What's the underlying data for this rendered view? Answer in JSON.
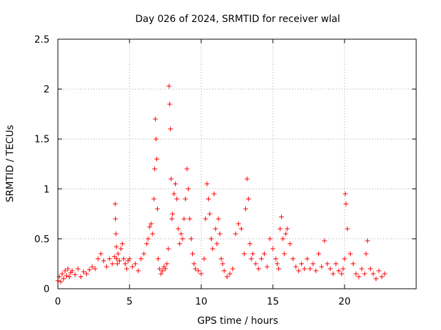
{
  "chart_data": {
    "type": "scatter",
    "title": "Day 026 of 2024, SRMTID for receiver wlal",
    "xlabel": "GPS time / hours",
    "ylabel": "SRMTID / TECUs",
    "xlim": [
      0,
      25
    ],
    "ylim": [
      0,
      2.5
    ],
    "xticks": [
      0,
      5,
      10,
      15,
      20
    ],
    "xtick_labels": [
      "0",
      "5",
      "10",
      "15",
      "20"
    ],
    "yticks": [
      0,
      0.5,
      1,
      1.5,
      2,
      2.5
    ],
    "ytick_labels": [
      "0",
      "0.5",
      "1",
      "1.5",
      "2",
      "2.5"
    ],
    "grid": true,
    "marker": "+",
    "color": "#ff0000",
    "series": [
      {
        "name": "SRMTID",
        "x": [
          0.0,
          0.1,
          0.2,
          0.3,
          0.4,
          0.5,
          0.6,
          0.7,
          0.8,
          0.9,
          1.0,
          1.2,
          1.4,
          1.6,
          1.8,
          2.0,
          2.2,
          2.4,
          2.6,
          2.8,
          3.0,
          3.2,
          3.4,
          3.6,
          3.8,
          3.95,
          4.0,
          4.02,
          4.05,
          4.08,
          4.1,
          4.15,
          4.2,
          4.3,
          4.4,
          4.5,
          4.6,
          4.7,
          4.8,
          4.9,
          5.0,
          5.2,
          5.4,
          5.6,
          5.8,
          6.0,
          6.2,
          6.3,
          6.4,
          6.5,
          6.6,
          6.7,
          6.75,
          6.8,
          6.85,
          6.9,
          6.95,
          7.0,
          7.1,
          7.2,
          7.3,
          7.4,
          7.5,
          7.6,
          7.7,
          7.75,
          7.8,
          7.85,
          7.9,
          7.95,
          8.0,
          8.1,
          8.2,
          8.3,
          8.4,
          8.5,
          8.6,
          8.7,
          8.8,
          8.9,
          9.0,
          9.1,
          9.2,
          9.3,
          9.4,
          9.5,
          9.6,
          9.8,
          10.0,
          10.2,
          10.3,
          10.4,
          10.5,
          10.6,
          10.7,
          10.8,
          10.9,
          11.0,
          11.1,
          11.2,
          11.3,
          11.4,
          11.5,
          11.6,
          11.8,
          12.0,
          12.2,
          12.4,
          12.6,
          12.8,
          13.0,
          13.1,
          13.2,
          13.3,
          13.4,
          13.5,
          13.6,
          13.8,
          14.0,
          14.2,
          14.4,
          14.6,
          14.8,
          15.0,
          15.2,
          15.3,
          15.4,
          15.5,
          15.6,
          15.7,
          15.8,
          15.9,
          16.0,
          16.2,
          16.4,
          16.6,
          16.8,
          17.0,
          17.2,
          17.4,
          17.6,
          17.8,
          18.0,
          18.2,
          18.4,
          18.6,
          18.8,
          19.0,
          19.2,
          19.4,
          19.6,
          19.8,
          19.9,
          20.0,
          20.05,
          20.1,
          20.2,
          20.4,
          20.6,
          20.8,
          21.0,
          21.2,
          21.4,
          21.5,
          21.6,
          21.8,
          22.0,
          22.2,
          22.4,
          22.6,
          22.8
        ],
        "y": [
          0.08,
          0.12,
          0.07,
          0.15,
          0.1,
          0.18,
          0.13,
          0.2,
          0.12,
          0.16,
          0.18,
          0.14,
          0.2,
          0.12,
          0.17,
          0.15,
          0.19,
          0.22,
          0.2,
          0.3,
          0.35,
          0.28,
          0.22,
          0.3,
          0.25,
          0.32,
          0.85,
          0.7,
          0.55,
          0.42,
          0.3,
          0.25,
          0.35,
          0.28,
          0.4,
          0.45,
          0.3,
          0.25,
          0.2,
          0.28,
          0.3,
          0.22,
          0.25,
          0.18,
          0.3,
          0.35,
          0.45,
          0.5,
          0.62,
          0.65,
          0.55,
          0.9,
          1.2,
          1.7,
          1.5,
          1.3,
          0.8,
          0.3,
          0.2,
          0.15,
          0.18,
          0.22,
          0.2,
          0.25,
          0.4,
          2.03,
          1.85,
          1.6,
          1.1,
          0.7,
          0.75,
          0.95,
          1.05,
          0.9,
          0.6,
          0.45,
          0.55,
          0.5,
          0.7,
          0.9,
          1.2,
          1.0,
          0.7,
          0.5,
          0.35,
          0.25,
          0.2,
          0.18,
          0.15,
          0.3,
          0.7,
          1.05,
          0.9,
          0.75,
          0.5,
          0.4,
          0.95,
          0.6,
          0.45,
          0.7,
          0.55,
          0.3,
          0.25,
          0.18,
          0.12,
          0.15,
          0.2,
          0.55,
          0.65,
          0.6,
          0.35,
          0.8,
          1.1,
          0.9,
          0.45,
          0.3,
          0.35,
          0.25,
          0.2,
          0.3,
          0.35,
          0.22,
          0.5,
          0.4,
          0.3,
          0.25,
          0.2,
          0.6,
          0.72,
          0.5,
          0.35,
          0.55,
          0.6,
          0.45,
          0.3,
          0.22,
          0.18,
          0.25,
          0.2,
          0.3,
          0.2,
          0.25,
          0.18,
          0.35,
          0.22,
          0.48,
          0.25,
          0.2,
          0.15,
          0.25,
          0.18,
          0.15,
          0.2,
          0.3,
          0.95,
          0.85,
          0.6,
          0.35,
          0.25,
          0.15,
          0.12,
          0.2,
          0.15,
          0.35,
          0.48,
          0.2,
          0.15,
          0.1,
          0.18,
          0.12,
          0.15
        ]
      }
    ]
  }
}
